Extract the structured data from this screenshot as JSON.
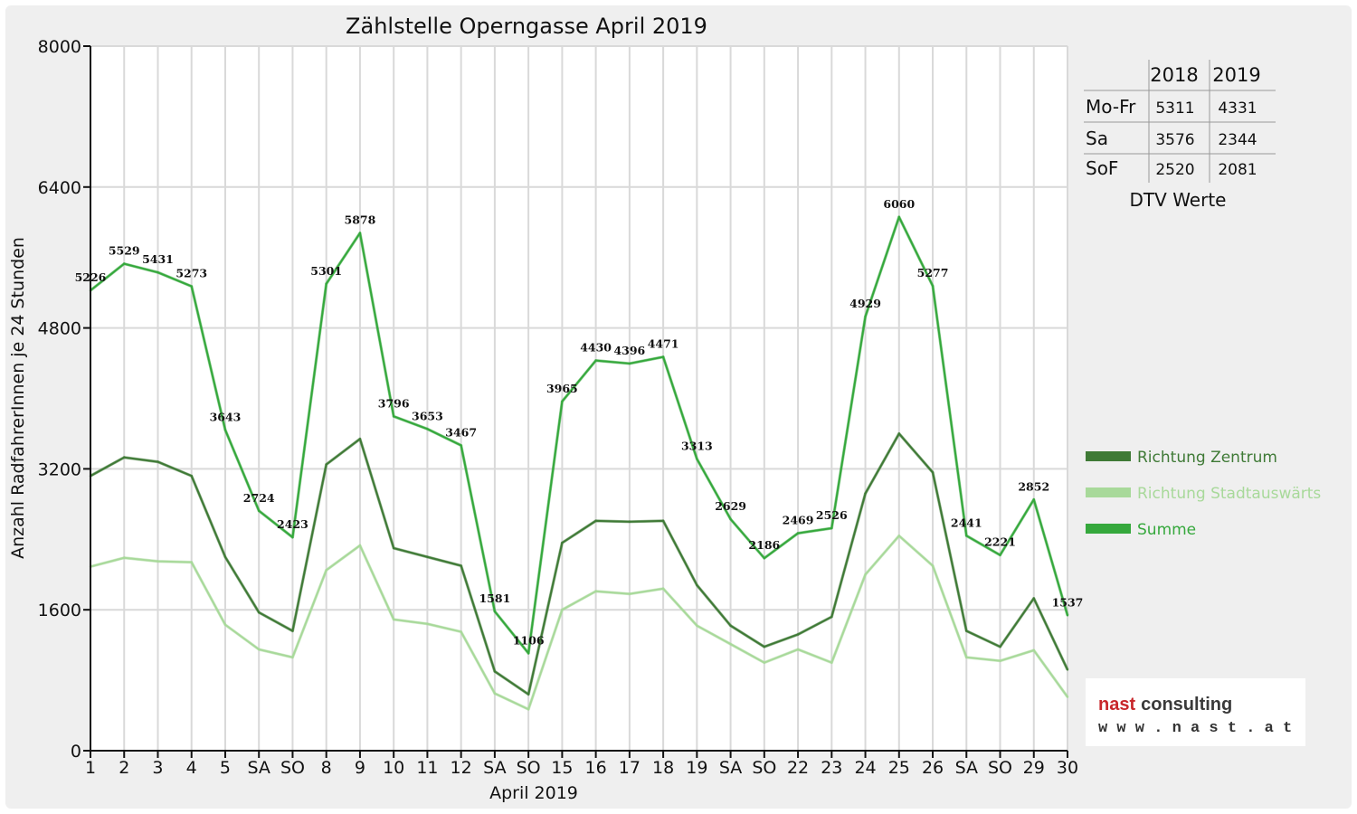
{
  "chart_data": {
    "type": "line",
    "title": "Zählstelle Operngasse April 2019",
    "xlabel": "April 2019",
    "ylabel": "Anzahl RadfahrerInnen je 24 Stunden",
    "ylim": [
      0,
      8000
    ],
    "yticks": [
      0,
      1600,
      3200,
      4800,
      6400,
      8000
    ],
    "grid": true,
    "legend_position": "right",
    "categories": [
      "1",
      "2",
      "3",
      "4",
      "5",
      "SA",
      "SO",
      "8",
      "9",
      "10",
      "11",
      "12",
      "SA",
      "SO",
      "15",
      "16",
      "17",
      "18",
      "19",
      "SA",
      "SO",
      "22",
      "23",
      "24",
      "25",
      "26",
      "SA",
      "SO",
      "29",
      "30"
    ],
    "red_categories": [
      6,
      13,
      20,
      21,
      27
    ],
    "series": [
      {
        "name": "Richtung Zentrum",
        "color": "#3f7a36",
        "values": [
          3120,
          3330,
          3280,
          3120,
          2200,
          1570,
          1360,
          3250,
          3540,
          2300,
          2200,
          2100,
          900,
          640,
          2360,
          2610,
          2600,
          2610,
          1880,
          1420,
          1180,
          1320,
          1520,
          2920,
          3600,
          3160,
          1360,
          1180,
          1730,
          920
        ]
      },
      {
        "name": "Richtung Stadtauswärts",
        "color": "#a8d99a",
        "values": [
          2090,
          2190,
          2150,
          2140,
          1430,
          1150,
          1060,
          2050,
          2330,
          1490,
          1440,
          1350,
          650,
          470,
          1600,
          1810,
          1780,
          1840,
          1420,
          1210,
          1000,
          1150,
          1000,
          2000,
          2440,
          2100,
          1060,
          1020,
          1140,
          610
        ]
      },
      {
        "name": "Summe",
        "color": "#35a83c",
        "values": [
          5226,
          5529,
          5431,
          5273,
          3643,
          2724,
          2423,
          5301,
          5878,
          3796,
          3653,
          3467,
          1581,
          1106,
          3965,
          4430,
          4396,
          4471,
          3313,
          2629,
          2186,
          2469,
          2526,
          4929,
          6060,
          5277,
          2441,
          2221,
          2852,
          1537
        ]
      }
    ]
  },
  "dtv_table": {
    "headers": [
      "",
      "2018",
      "2019"
    ],
    "rows": [
      {
        "label": "Mo-Fr",
        "v2018": "5311",
        "v2019": "4331"
      },
      {
        "label": "Sa",
        "v2018": "3576",
        "v2019": "2344"
      },
      {
        "label": "SoF",
        "v2018": "2520",
        "v2019": "2081"
      }
    ],
    "caption": "DTV Werte"
  },
  "logo": {
    "word1": "nast",
    "word2": "consulting",
    "url": "w w w . n a s t . a t"
  },
  "colors": {
    "holiday_red": "#e00000",
    "grid": "#d8d8d8"
  }
}
